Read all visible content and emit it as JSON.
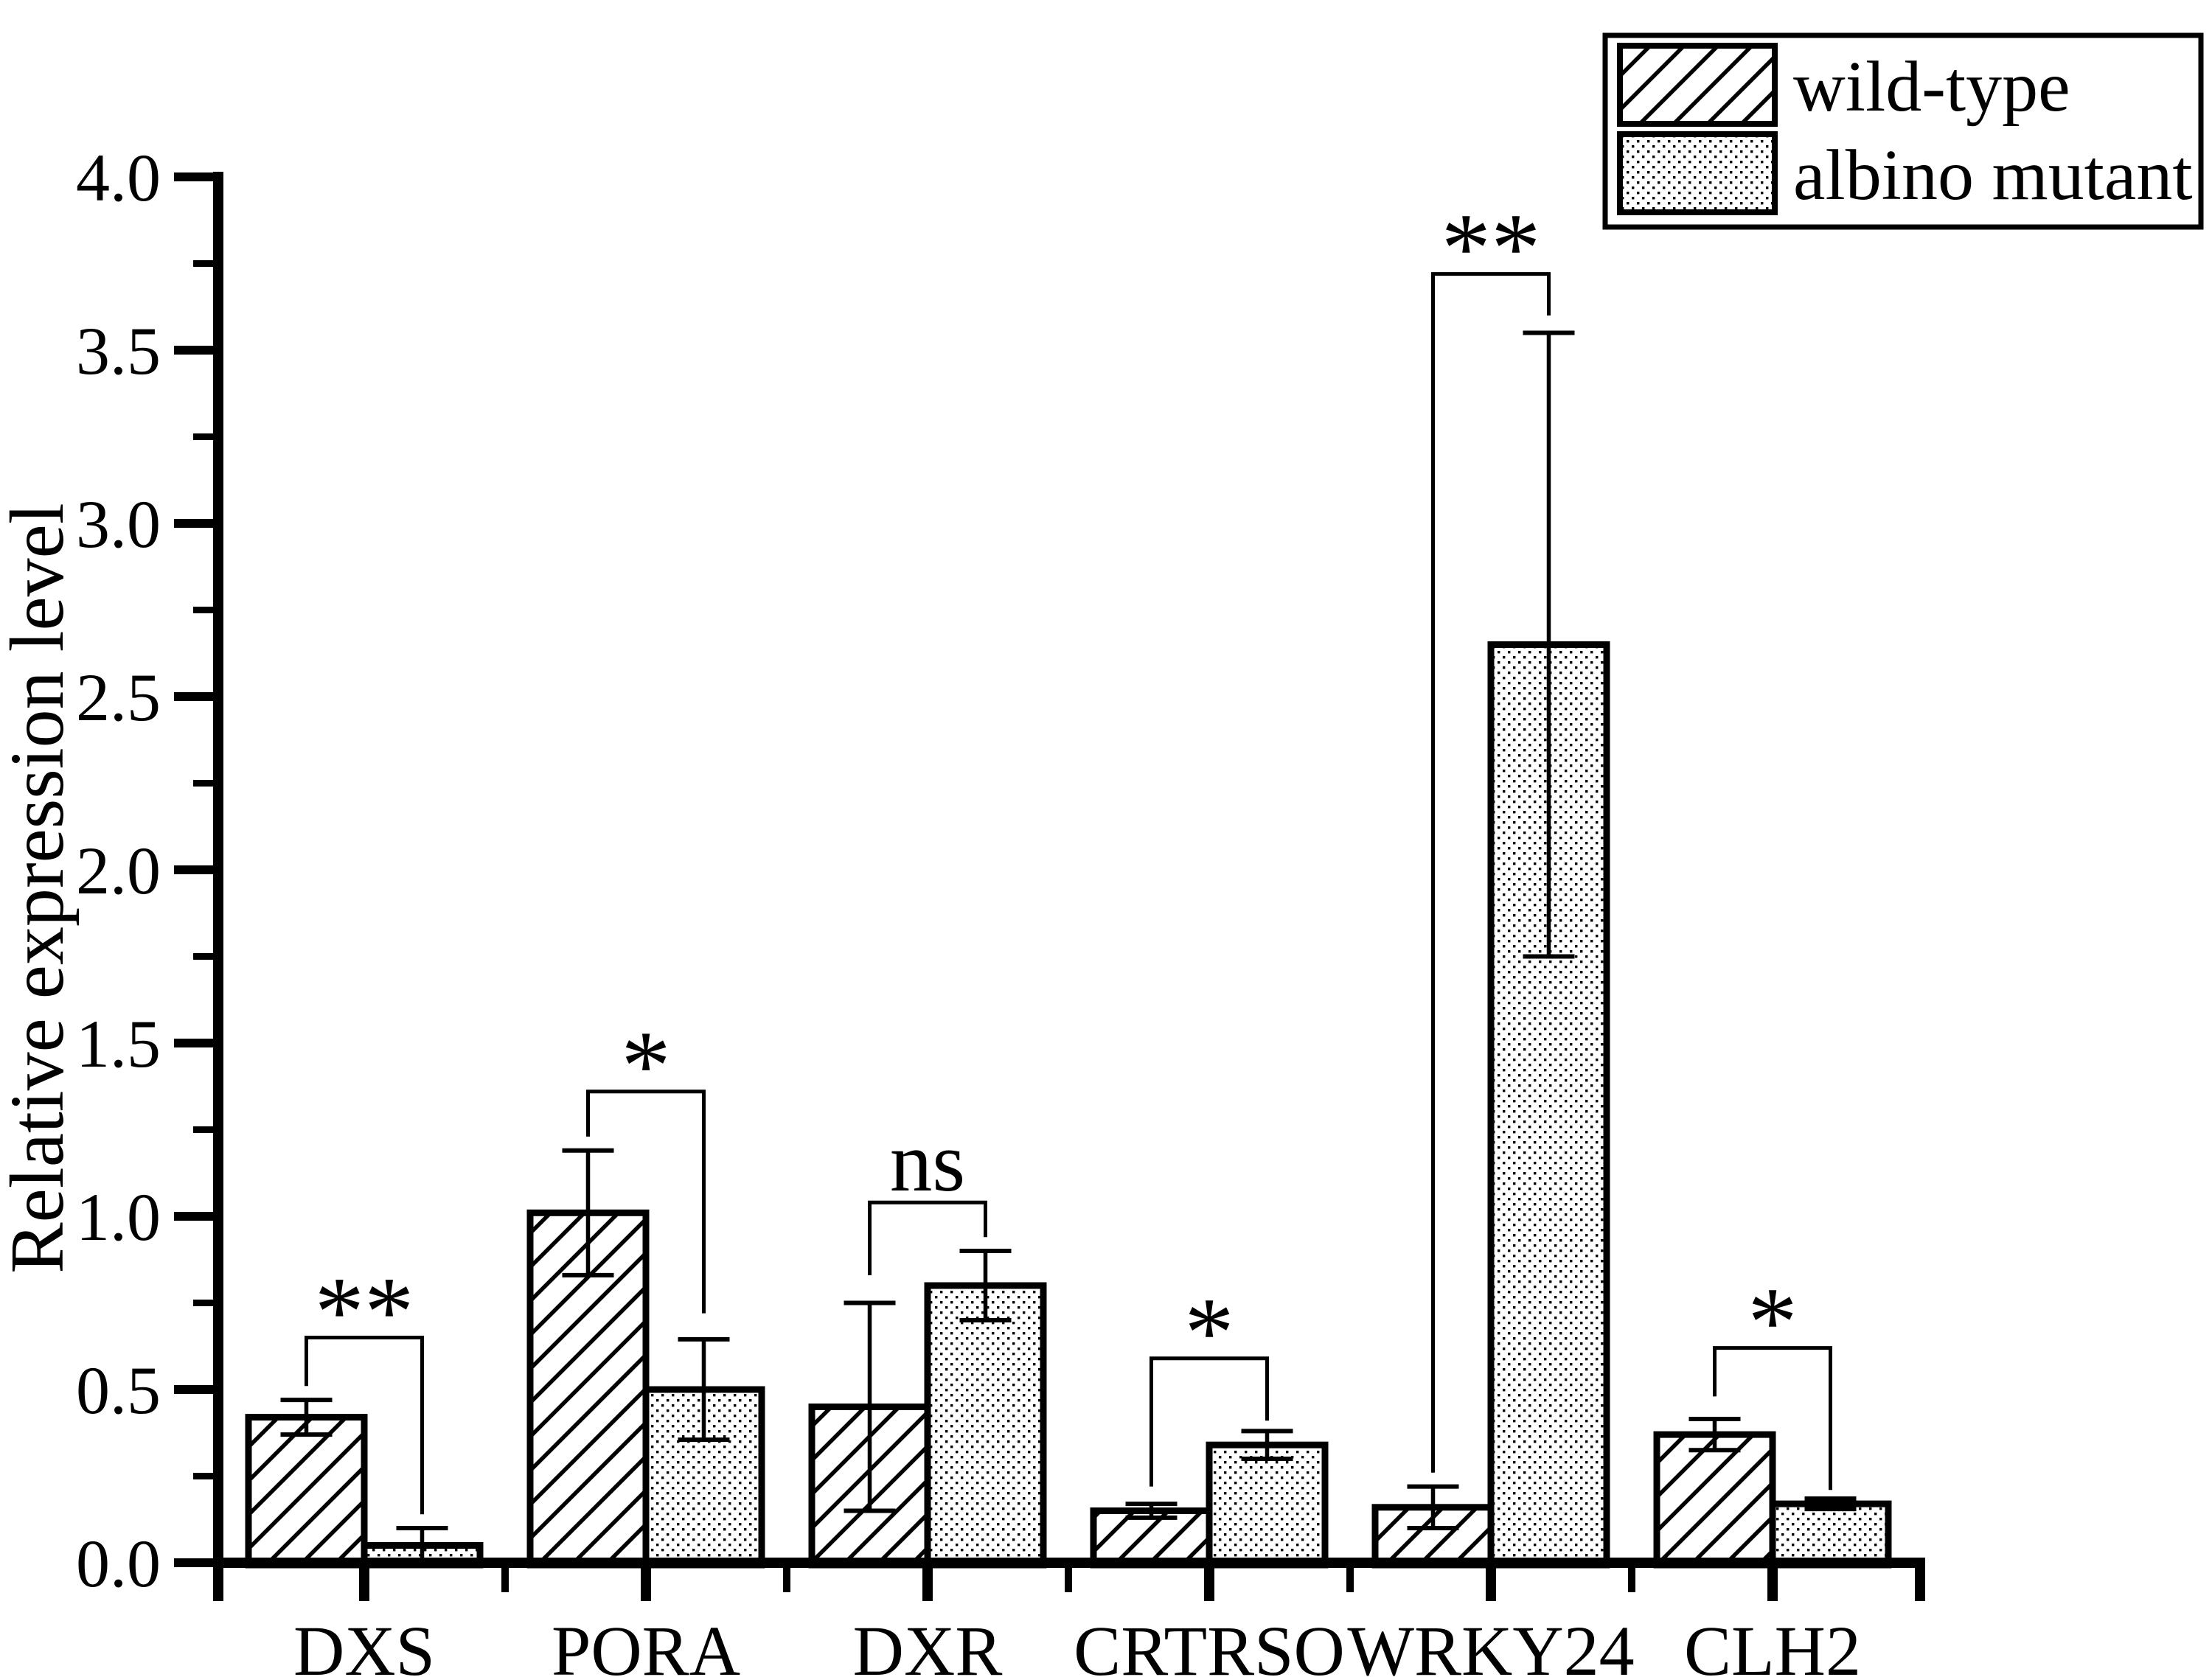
{
  "figure": {
    "background": "#ffffff",
    "ink": "#000000"
  },
  "chart_data": {
    "type": "bar",
    "title": "",
    "xlabel": "",
    "ylabel": "Relative expression level",
    "ylim": [
      0.0,
      4.0
    ],
    "ytick_step": 0.5,
    "ytick_minor_step": 0.25,
    "ytick_labels": [
      "0.0",
      "0.5",
      "1.0",
      "1.5",
      "2.0",
      "2.5",
      "3.0",
      "3.5",
      "4.0"
    ],
    "grid": false,
    "categories": [
      "DXS",
      "PORA",
      "DXR",
      "CRTRSO",
      "WRKY24",
      "CLH2"
    ],
    "series": [
      {
        "name": "wild-type",
        "pattern": "diagonal-hatch",
        "values": [
          0.42,
          1.01,
          0.45,
          0.15,
          0.16,
          0.37
        ],
        "errors": [
          0.05,
          0.18,
          0.3,
          0.02,
          0.06,
          0.045
        ]
      },
      {
        "name": "albino mutant",
        "pattern": "dots",
        "values": [
          0.05,
          0.5,
          0.8,
          0.34,
          2.65,
          0.17
        ],
        "errors": [
          0.05,
          0.145,
          0.1,
          0.04,
          0.9,
          0.015
        ]
      }
    ],
    "significance": [
      {
        "category": "DXS",
        "label": "**",
        "bracket_y": 0.65,
        "left_arm_down_to": 0.51,
        "right_arm_down_to": 0.14
      },
      {
        "category": "PORA",
        "label": "*",
        "bracket_y": 1.36,
        "left_arm_down_to": 1.23,
        "right_arm_down_to": 0.72
      },
      {
        "category": "DXR",
        "label": "ns",
        "bracket_y": 1.04,
        "left_arm_down_to": 0.83,
        "right_arm_down_to": 0.94
      },
      {
        "category": "CRTRSO",
        "label": "*",
        "bracket_y": 0.59,
        "left_arm_down_to": 0.22,
        "right_arm_down_to": 0.41
      },
      {
        "category": "WRKY24",
        "label": "**",
        "bracket_y": 3.72,
        "left_arm_down_to": 0.26,
        "right_arm_down_to": 3.6
      },
      {
        "category": "CLH2",
        "label": "*",
        "bracket_y": 0.62,
        "left_arm_down_to": 0.48,
        "right_arm_down_to": 0.21
      }
    ],
    "legend": {
      "position": "top-right",
      "entries": [
        {
          "label": "wild-type",
          "pattern": "diagonal-hatch"
        },
        {
          "label": "albino mutant",
          "pattern": "dots"
        }
      ]
    }
  }
}
